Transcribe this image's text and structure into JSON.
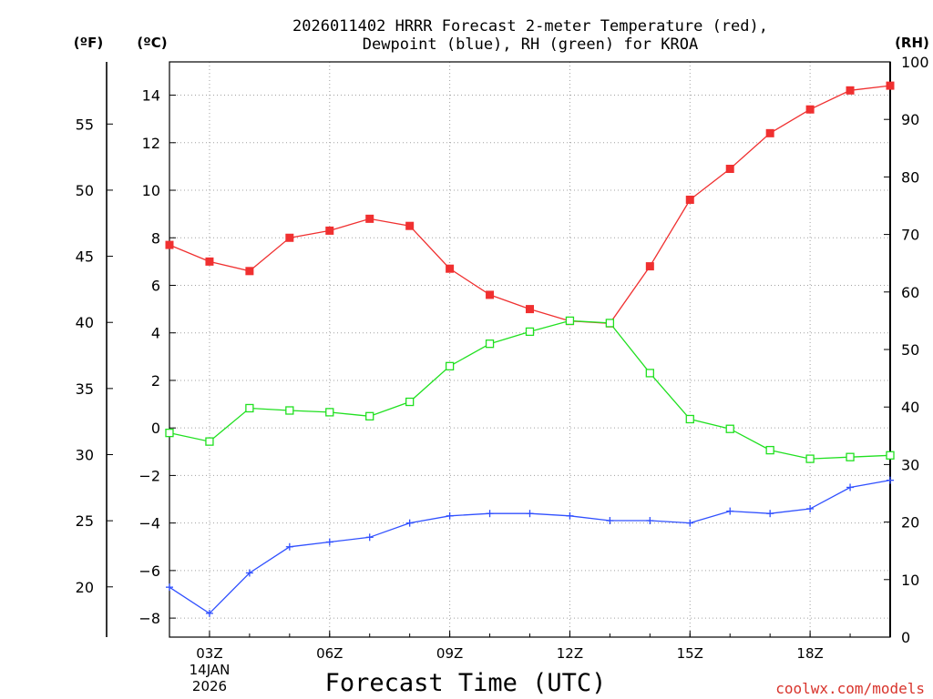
{
  "chart_data": {
    "type": "line",
    "title_line1": "2026011402 HRRR Forecast 2-meter Temperature (red),",
    "title_line2": "Dewpoint (blue), RH (green) for KROA",
    "units": {
      "fahrenheit": "(ºF)",
      "celsius": "(ºC)",
      "rh": "(RH)"
    },
    "xlabel": "Forecast Time (UTC)",
    "date_label_line1": "14JAN",
    "date_label_line2": "2026",
    "watermark": "coolwx.com/models",
    "x_hours": [
      2,
      3,
      4,
      5,
      6,
      7,
      8,
      9,
      10,
      11,
      12,
      13,
      14,
      15,
      16,
      17,
      18,
      19,
      20
    ],
    "xlim": [
      2,
      20
    ],
    "x_ticks": [
      {
        "hour": 3,
        "label": "03Z"
      },
      {
        "hour": 6,
        "label": "06Z"
      },
      {
        "hour": 9,
        "label": "09Z"
      },
      {
        "hour": 12,
        "label": "12Z"
      },
      {
        "hour": 15,
        "label": "15Z"
      },
      {
        "hour": 18,
        "label": "18Z"
      }
    ],
    "celsius_axis": {
      "ylim": [
        -8.8,
        15.4
      ],
      "ticks": [
        -8,
        -6,
        -4,
        -2,
        0,
        2,
        4,
        6,
        8,
        10,
        12,
        14
      ]
    },
    "fahrenheit_axis": {
      "ylim": [
        16.2,
        59.7
      ],
      "ticks": [
        20,
        25,
        30,
        35,
        40,
        45,
        50,
        55
      ]
    },
    "rh_axis": {
      "ylim": [
        0,
        100
      ],
      "ticks": [
        0,
        10,
        20,
        30,
        40,
        50,
        60,
        70,
        80,
        90,
        100
      ]
    },
    "series": [
      {
        "name": "Temperature",
        "axis": "celsius",
        "color": "#f03030",
        "marker": "filled-square",
        "values": [
          7.7,
          7.0,
          6.6,
          8.0,
          8.3,
          8.8,
          8.5,
          6.7,
          5.6,
          5.0,
          4.5,
          4.4,
          6.8,
          9.6,
          10.9,
          12.4,
          13.4,
          14.2,
          14.4
        ]
      },
      {
        "name": "Dewpoint",
        "axis": "celsius",
        "color": "#3050ff",
        "marker": "plus",
        "values": [
          -6.7,
          -7.8,
          -6.1,
          -5.0,
          -4.8,
          -4.6,
          -4.0,
          -3.7,
          -3.6,
          -3.6,
          -3.7,
          -3.9,
          -3.9,
          -4.0,
          -3.5,
          -3.6,
          -3.4,
          -2.5,
          -2.2
        ]
      },
      {
        "name": "RH",
        "axis": "rh",
        "color": "#20e020",
        "marker": "open-square",
        "values": [
          35.5,
          34,
          39.8,
          39.4,
          39.1,
          38.4,
          40.9,
          47.1,
          51.0,
          53.1,
          55.0,
          54.6,
          45.9,
          37.9,
          36.2,
          32.5,
          31.0,
          31.3,
          31.6
        ]
      }
    ]
  }
}
